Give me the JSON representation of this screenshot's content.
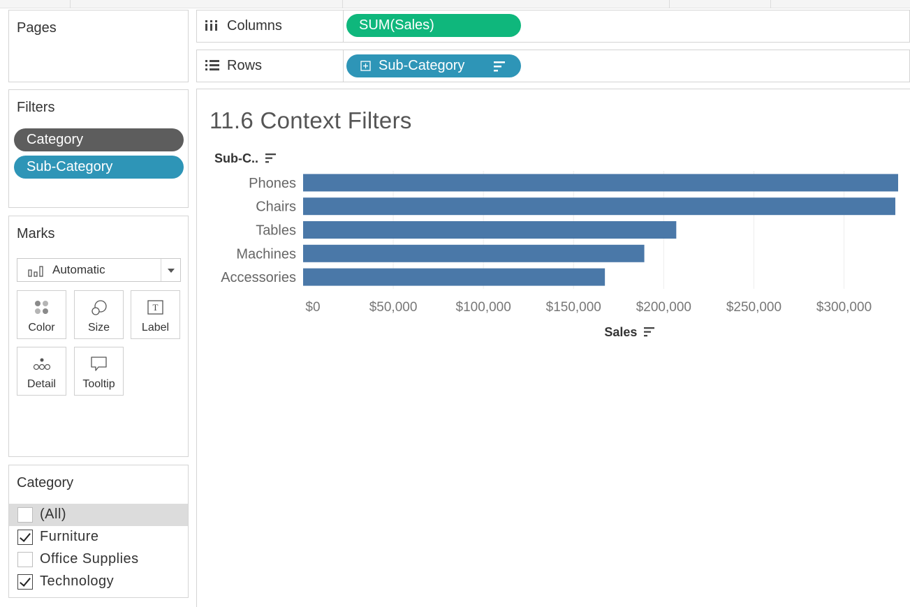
{
  "pages": {
    "title": "Pages"
  },
  "filters": {
    "title": "Filters",
    "pills": [
      {
        "label": "Category"
      },
      {
        "label": "Sub-Category"
      }
    ]
  },
  "marks": {
    "title": "Marks",
    "mark_type": "Automatic",
    "buttons": [
      {
        "label": "Color",
        "icon": "color-icon"
      },
      {
        "label": "Size",
        "icon": "size-icon"
      },
      {
        "label": "Label",
        "icon": "label-icon"
      },
      {
        "label": "Detail",
        "icon": "detail-icon"
      },
      {
        "label": "Tooltip",
        "icon": "tooltip-icon"
      }
    ]
  },
  "category_filter": {
    "title": "Category",
    "options": [
      {
        "label": "(All)",
        "checked": false
      },
      {
        "label": "Furniture",
        "checked": true
      },
      {
        "label": "Office Supplies",
        "checked": false
      },
      {
        "label": "Technology",
        "checked": true
      }
    ]
  },
  "shelves": {
    "columns": {
      "label": "Columns",
      "pill": "SUM(Sales)"
    },
    "rows": {
      "label": "Rows",
      "pill": "Sub-Category"
    }
  },
  "colors": {
    "bar": "#4a78a8",
    "pill_blue": "#2e95b7",
    "pill_green": "#0fb77c",
    "pill_gray": "#5d5d5d"
  },
  "view": {
    "title": "11.6 Context Filters",
    "row_header": "Sub-C..",
    "axis_title": "Sales"
  },
  "chart_data": {
    "type": "bar",
    "orientation": "horizontal",
    "categories": [
      "Phones",
      "Chairs",
      "Tables",
      "Machines",
      "Accessories"
    ],
    "values": [
      330007,
      328449,
      206966,
      189239,
      167380
    ],
    "xlabel": "Sales",
    "ylabel": "Sub-C..",
    "xlim": [
      0,
      330007
    ],
    "x_ticks": [
      0,
      50000,
      100000,
      150000,
      200000,
      250000,
      300000
    ],
    "x_tick_labels": [
      "$0",
      "$50,000",
      "$100,000",
      "$150,000",
      "$200,000",
      "$250,000",
      "$300,000"
    ],
    "grid": true
  }
}
